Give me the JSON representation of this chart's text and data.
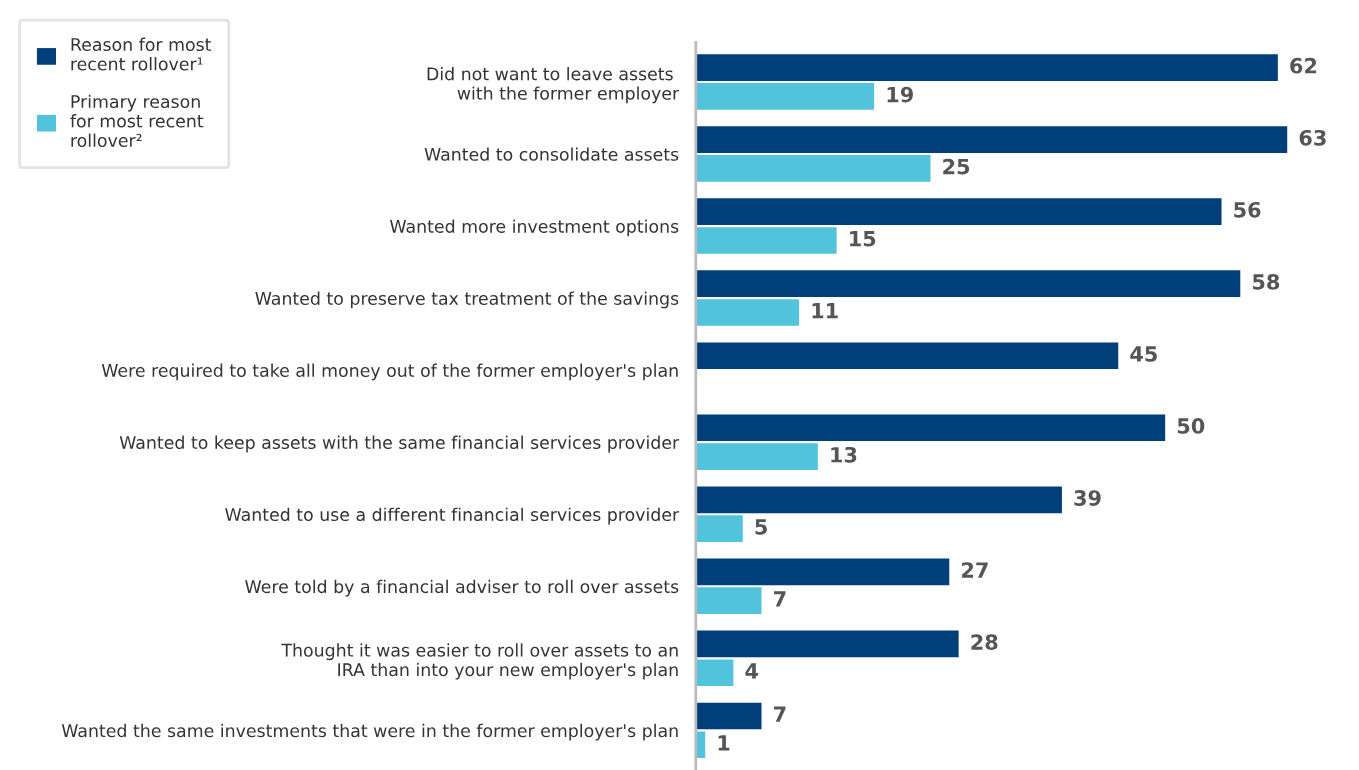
{
  "chart_data": {
    "type": "bar",
    "orientation": "horizontal",
    "data_labels": true,
    "legend": "top left",
    "grid": false,
    "categories": [
      "Did not want to leave assets \nwith the former employer",
      "Wanted to consolidate assets",
      "Wanted more investment options",
      "Wanted to preserve tax treatment of the savings",
      "Were required to take all money out of the former employer's plan",
      "Wanted to keep assets with the same financial services provider",
      "Wanted to use a different financial services provider",
      "Were told by a financial adviser to roll over assets",
      "Thought it was easier to roll over assets to an\nIRA than into your new employer's plan",
      "Wanted the same investments that were in the former employer's plan"
    ],
    "series": [
      {
        "name": "Reason for most\nrecent rollover¹",
        "color": "#003f7a",
        "values": [
          62,
          63,
          56,
          58,
          45,
          50,
          39,
          27,
          28,
          7
        ]
      },
      {
        "name": "Primary reason\nfor most recent\nrollover²",
        "color": "#52c3dc",
        "values": [
          19,
          25,
          15,
          11,
          null,
          13,
          5,
          7,
          4,
          1
        ]
      }
    ]
  }
}
